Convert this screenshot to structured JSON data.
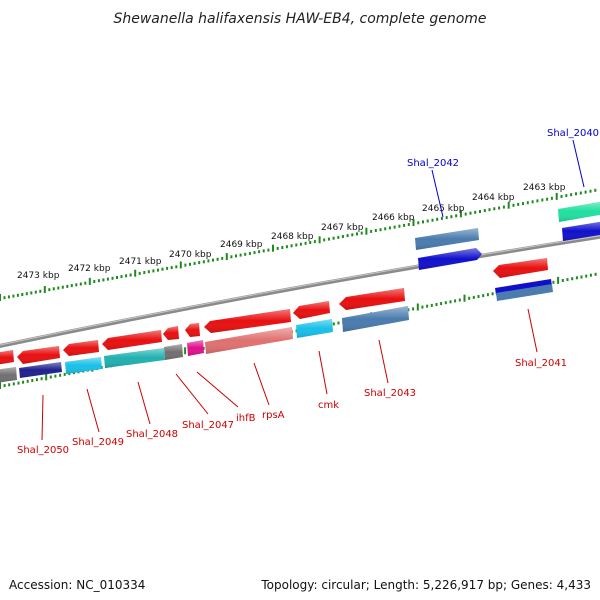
{
  "title": "Shewanella halifaxensis HAW-EB4, complete genome",
  "footer": {
    "accession": "Accession: NC_010334",
    "summary": "Topology: circular; Length: 5,226,917 bp; Genes: 4,433"
  },
  "colors": {
    "backbone": "#8a8a8a",
    "tick": "#1f8a1f",
    "forward_label": "#0000cc",
    "reverse_label": "#cc0000",
    "gene_red": "#e81010",
    "gene_blue": "#1010cc",
    "gene_steel": "#4a7cae",
    "gene_cyan": "#18c0e8",
    "gene_teal": "#20b0b0",
    "gene_green": "#20e0a0",
    "gene_pink": "#e07070",
    "gene_magenta": "#e0108c",
    "gene_gray": "#707070",
    "gene_navy": "#202090"
  },
  "scale_labels": [
    {
      "text": "2473 kbp"
    },
    {
      "text": "2472 kbp"
    },
    {
      "text": "2471 kbp"
    },
    {
      "text": "2470 kbp"
    },
    {
      "text": "2469 kbp"
    },
    {
      "text": "2468 kbp"
    },
    {
      "text": "2467 kbp"
    },
    {
      "text": "2466 kbp"
    },
    {
      "text": "2465 kbp"
    },
    {
      "text": "2464 kbp"
    },
    {
      "text": "2463 kbp"
    }
  ],
  "gene_labels": [
    {
      "text": "Shal_2040",
      "strand": "forward"
    },
    {
      "text": "Shal_2042",
      "strand": "forward"
    },
    {
      "text": "Shal_2041",
      "strand": "reverse"
    },
    {
      "text": "Shal_2043",
      "strand": "reverse"
    },
    {
      "text": "cmk",
      "strand": "reverse"
    },
    {
      "text": "rpsA",
      "strand": "reverse"
    },
    {
      "text": "ihfB",
      "strand": "reverse"
    },
    {
      "text": "Shal_2047",
      "strand": "reverse"
    },
    {
      "text": "Shal_2048",
      "strand": "reverse"
    },
    {
      "text": "Shal_2049",
      "strand": "reverse"
    },
    {
      "text": "Shal_2050",
      "strand": "reverse"
    }
  ]
}
